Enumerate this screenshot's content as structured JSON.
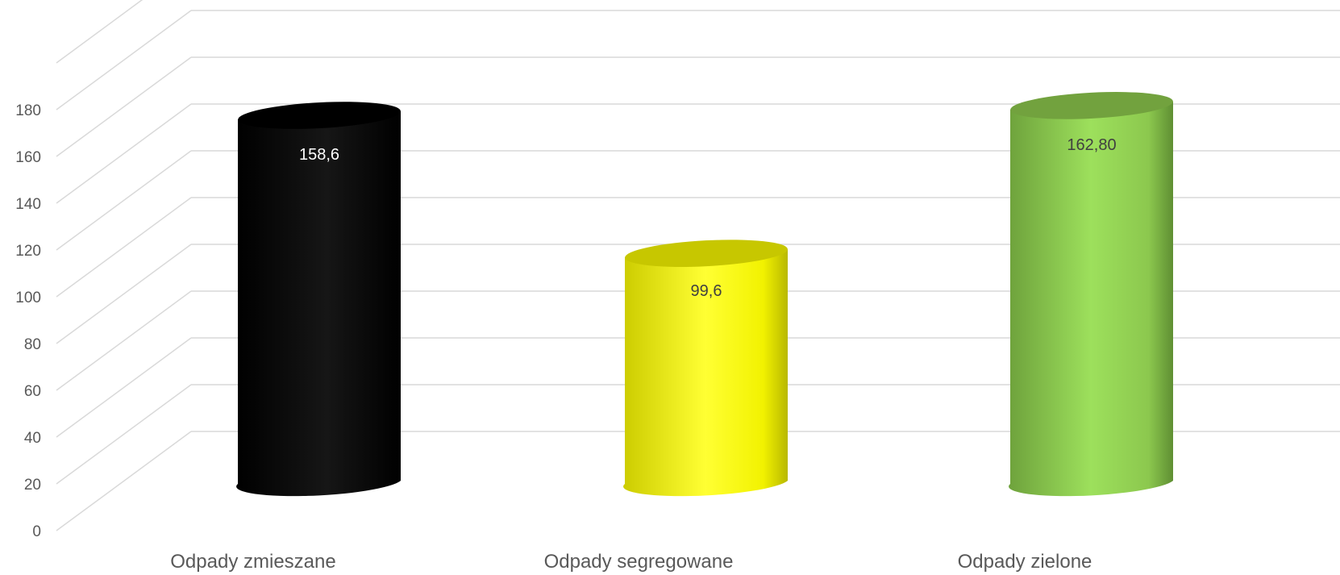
{
  "chart_data": {
    "type": "bar",
    "style": "3d-cylinder",
    "categories": [
      "Odpady zmieszane",
      "Odpady segregowane",
      "Odpady zielone"
    ],
    "values": [
      158.6,
      99.6,
      162.8
    ],
    "data_labels": [
      "158,6",
      "99,6",
      "162,80"
    ],
    "bar_colors": [
      "#000000",
      "#ffff00",
      "#92d050"
    ],
    "label_colors": [
      "#ffffff",
      "#404040",
      "#404040"
    ],
    "yticks": [
      "0",
      "20",
      "40",
      "60",
      "80",
      "100",
      "120",
      "140",
      "160",
      "180"
    ],
    "ylim": [
      0,
      200
    ],
    "grid": true,
    "legend": "none"
  }
}
